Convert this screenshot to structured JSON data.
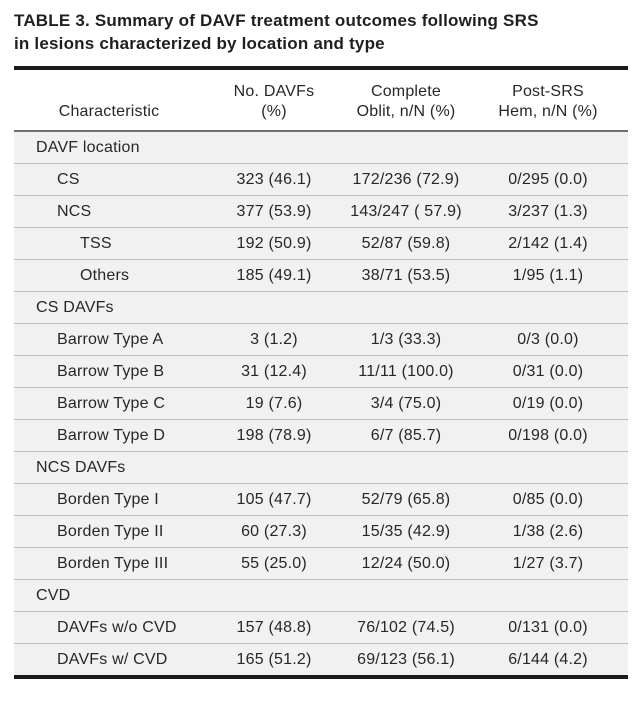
{
  "title": {
    "line1": "TABLE 3. Summary of DAVF treatment outcomes following SRS",
    "line2": "in lesions characterized by location and type"
  },
  "colors": {
    "heavy_rule": "#1b1b1b",
    "header_rule": "#6f6f6f",
    "row_rule": "#bdbdbd",
    "row_background": "#f1f1f1",
    "text": "#272727"
  },
  "table": {
    "columns": [
      {
        "line1": "",
        "line2": "Characteristic"
      },
      {
        "line1": "No. DAVFs",
        "line2": "(%)"
      },
      {
        "line1": "Complete",
        "line2": "Oblit, n/N (%)"
      },
      {
        "line1": "Post-SRS",
        "line2": "Hem, n/N (%)"
      }
    ],
    "rows": [
      {
        "label": "DAVF location",
        "indent": 0,
        "section": true,
        "no_davfs": "",
        "complete_oblit": "",
        "post_srs_hem": ""
      },
      {
        "label": "CS",
        "indent": 1,
        "section": false,
        "no_davfs": "323 (46.1)",
        "complete_oblit": "172/236 (72.9)",
        "post_srs_hem": "0/295 (0.0)"
      },
      {
        "label": "NCS",
        "indent": 1,
        "section": false,
        "no_davfs": "377 (53.9)",
        "complete_oblit": "143/247 ( 57.9)",
        "post_srs_hem": "3/237 (1.3)"
      },
      {
        "label": "TSS",
        "indent": 2,
        "section": false,
        "no_davfs": "192 (50.9)",
        "complete_oblit": "52/87 (59.8)",
        "post_srs_hem": "2/142 (1.4)"
      },
      {
        "label": "Others",
        "indent": 2,
        "section": false,
        "no_davfs": "185 (49.1)",
        "complete_oblit": "38/71 (53.5)",
        "post_srs_hem": "1/95 (1.1)"
      },
      {
        "label": "CS DAVFs",
        "indent": 0,
        "section": true,
        "no_davfs": "",
        "complete_oblit": "",
        "post_srs_hem": ""
      },
      {
        "label": "Barrow Type A",
        "indent": 1,
        "section": false,
        "no_davfs": "3 (1.2)",
        "complete_oblit": "1/3 (33.3)",
        "post_srs_hem": "0/3 (0.0)"
      },
      {
        "label": "Barrow Type B",
        "indent": 1,
        "section": false,
        "no_davfs": "31 (12.4)",
        "complete_oblit": "11/11 (100.0)",
        "post_srs_hem": "0/31 (0.0)"
      },
      {
        "label": "Barrow Type C",
        "indent": 1,
        "section": false,
        "no_davfs": "19 (7.6)",
        "complete_oblit": "3/4 (75.0)",
        "post_srs_hem": "0/19 (0.0)"
      },
      {
        "label": "Barrow Type D",
        "indent": 1,
        "section": false,
        "no_davfs": "198 (78.9)",
        "complete_oblit": "6/7 (85.7)",
        "post_srs_hem": "0/198 (0.0)"
      },
      {
        "label": "NCS DAVFs",
        "indent": 0,
        "section": true,
        "no_davfs": "",
        "complete_oblit": "",
        "post_srs_hem": ""
      },
      {
        "label": "Borden Type I",
        "indent": 1,
        "section": false,
        "no_davfs": "105 (47.7)",
        "complete_oblit": "52/79 (65.8)",
        "post_srs_hem": "0/85 (0.0)"
      },
      {
        "label": "Borden Type II",
        "indent": 1,
        "section": false,
        "no_davfs": "60 (27.3)",
        "complete_oblit": "15/35 (42.9)",
        "post_srs_hem": "1/38 (2.6)"
      },
      {
        "label": "Borden Type III",
        "indent": 1,
        "section": false,
        "no_davfs": "55 (25.0)",
        "complete_oblit": "12/24 (50.0)",
        "post_srs_hem": "1/27 (3.7)"
      },
      {
        "label": "CVD",
        "indent": 0,
        "section": true,
        "no_davfs": "",
        "complete_oblit": "",
        "post_srs_hem": ""
      },
      {
        "label": "DAVFs w/o CVD",
        "indent": 1,
        "section": false,
        "no_davfs": "157 (48.8)",
        "complete_oblit": "76/102 (74.5)",
        "post_srs_hem": "0/131 (0.0)"
      },
      {
        "label": "DAVFs w/ CVD",
        "indent": 1,
        "section": false,
        "no_davfs": "165 (51.2)",
        "complete_oblit": "69/123 (56.1)",
        "post_srs_hem": "6/144 (4.2)"
      }
    ]
  }
}
